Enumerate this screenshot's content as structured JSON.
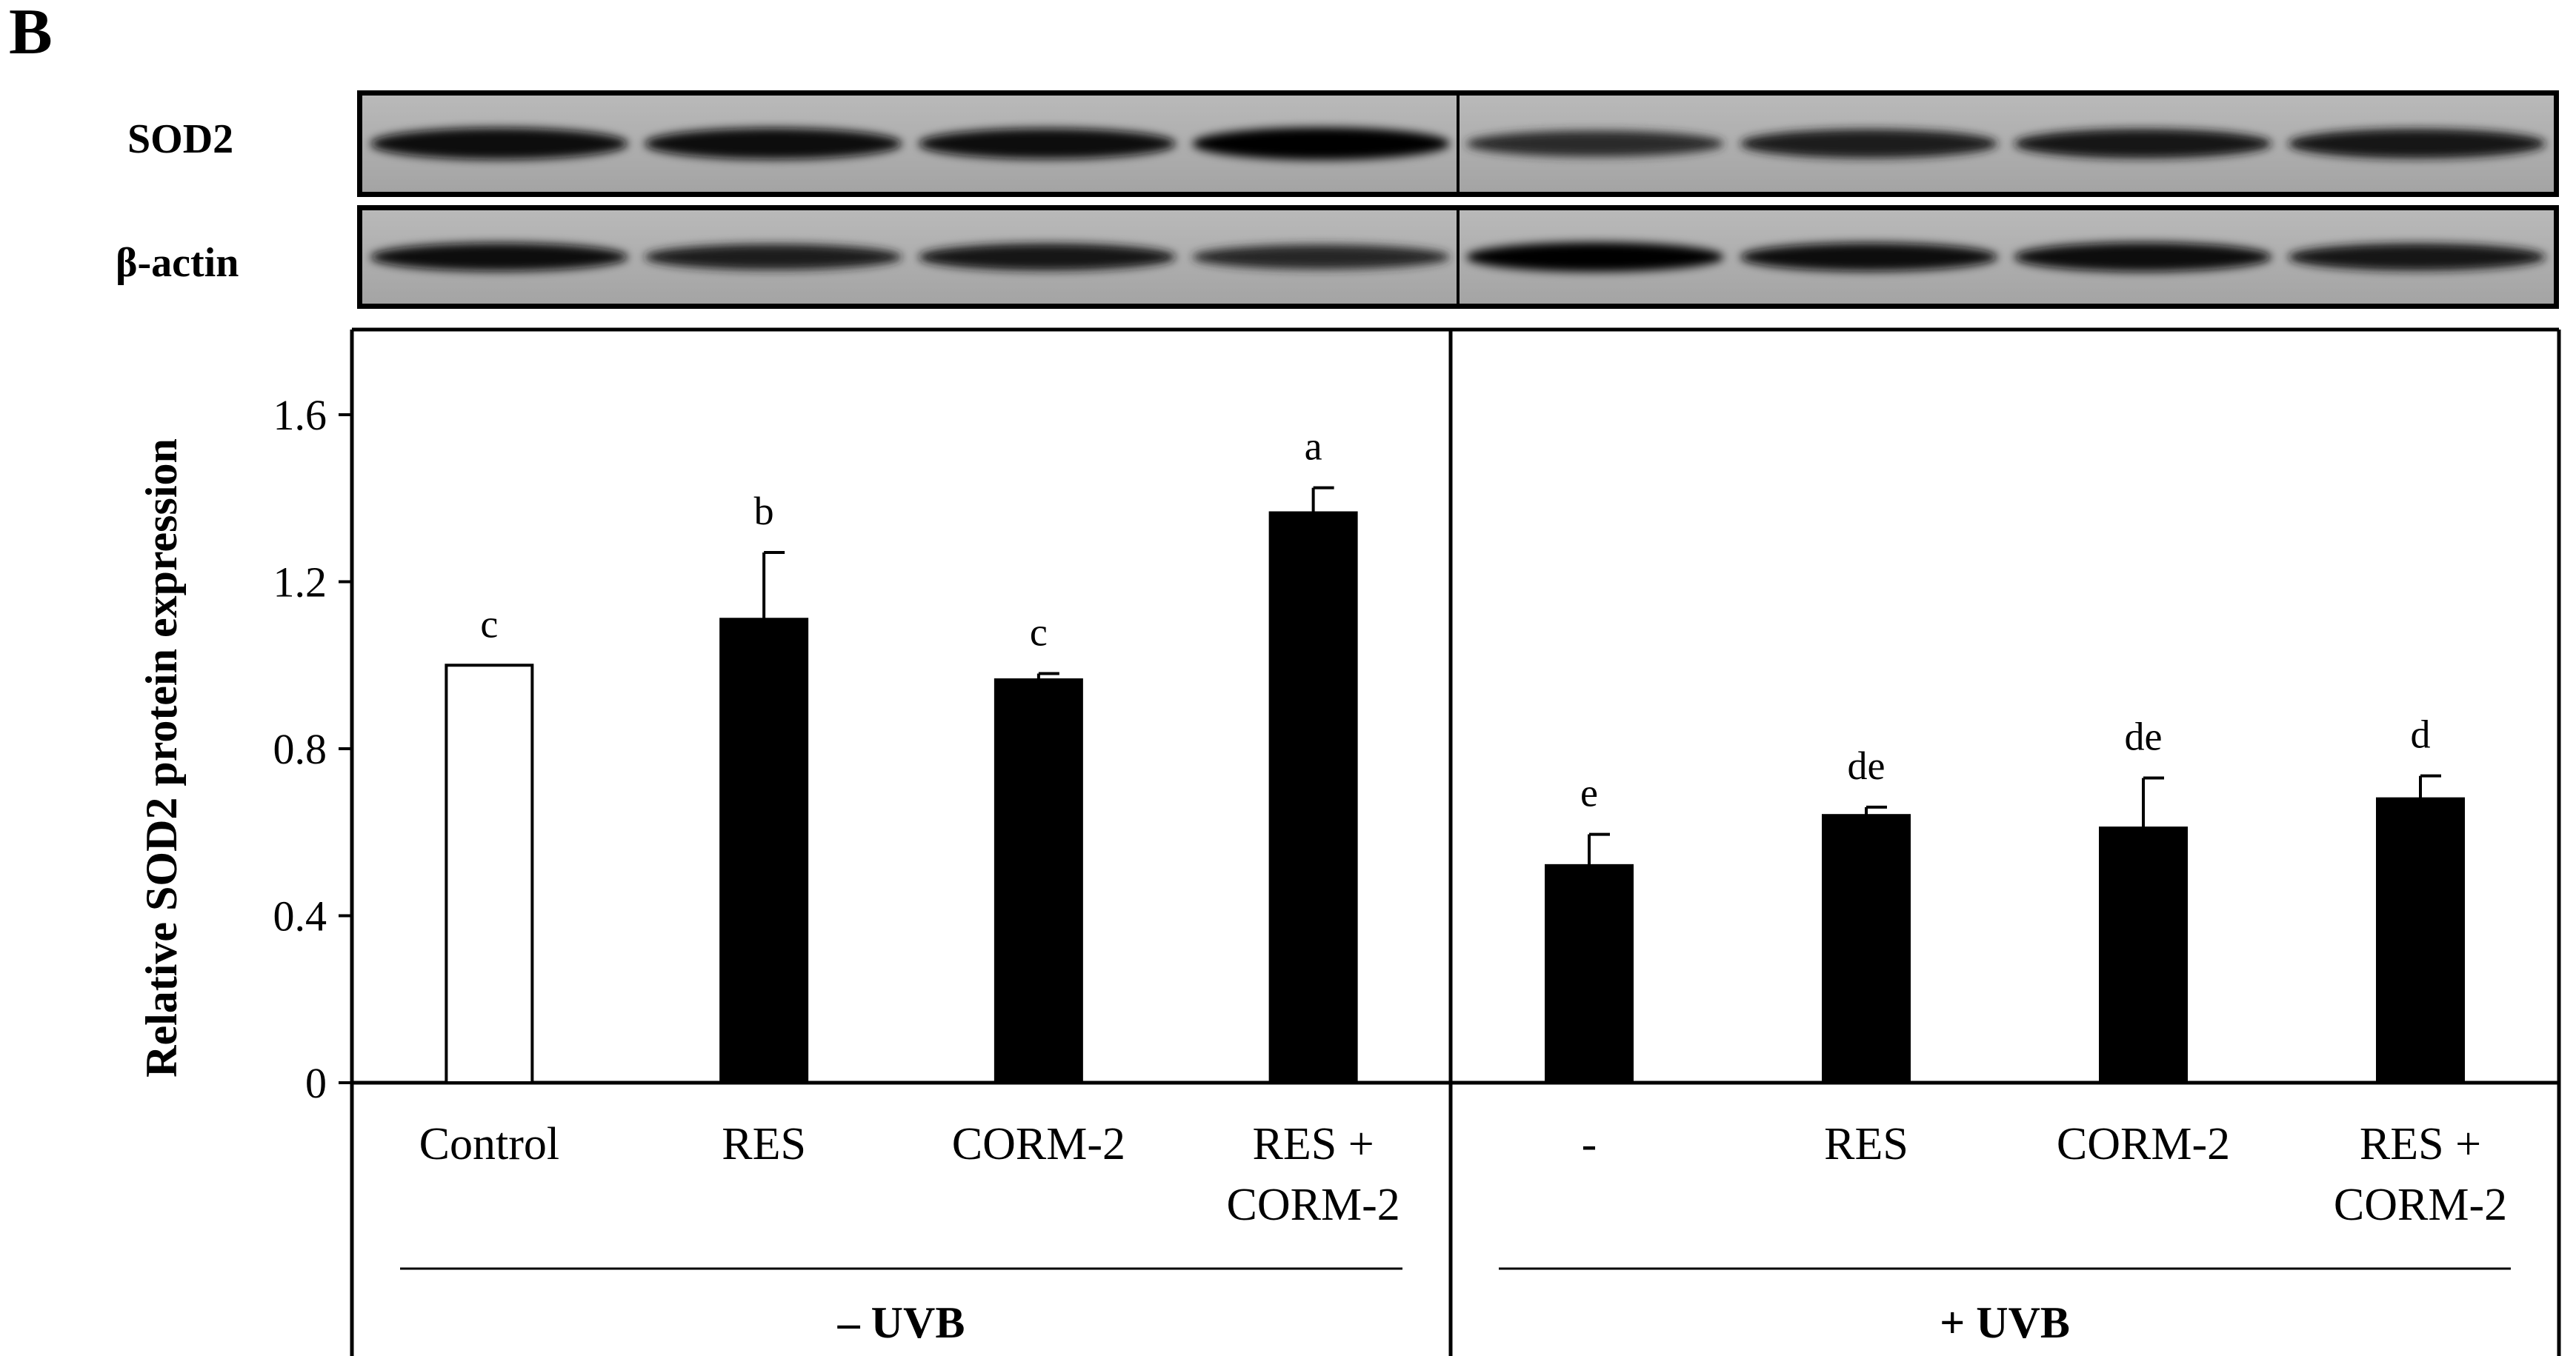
{
  "figure": {
    "panel_letter": "B",
    "blots": [
      {
        "label": "SOD2",
        "lane_intensity": [
          0.95,
          0.92,
          0.88,
          1.0,
          0.55,
          0.75,
          0.78,
          0.8
        ]
      },
      {
        "label": "β-actin",
        "lane_intensity": [
          0.9,
          0.7,
          0.8,
          0.62,
          1.0,
          0.92,
          0.98,
          0.82
        ]
      }
    ]
  },
  "chart_data": {
    "type": "bar",
    "ylabel": "Relative SOD2 protein expression",
    "ylim": [
      0,
      1.8
    ],
    "yticks": [
      {
        "value": 0,
        "label": "0"
      },
      {
        "value": 0.4,
        "label": "0.4"
      },
      {
        "value": 0.8,
        "label": "0.8"
      },
      {
        "value": 1.2,
        "label": "1.2"
      },
      {
        "value": 1.6,
        "label": "1.6"
      }
    ],
    "groups": [
      {
        "label": "– UVB",
        "bars": [
          {
            "category": [
              "Control"
            ],
            "value": 1.0,
            "error": 0,
            "letter": "c",
            "fill": "#ffffff"
          },
          {
            "category": [
              "RES"
            ],
            "value": 1.11,
            "error": 0.16,
            "letter": "b",
            "fill": "#000000"
          },
          {
            "category": [
              "CORM-2"
            ],
            "value": 0.965,
            "error": 0.015,
            "letter": "c",
            "fill": "#000000"
          },
          {
            "category": [
              "RES +",
              "CORM-2"
            ],
            "value": 1.365,
            "error": 0.06,
            "letter": "a",
            "fill": "#000000"
          }
        ]
      },
      {
        "label": "+ UVB",
        "bars": [
          {
            "category": [
              "-"
            ],
            "value": 0.52,
            "error": 0.075,
            "letter": "e",
            "fill": "#000000"
          },
          {
            "category": [
              "RES"
            ],
            "value": 0.64,
            "error": 0.02,
            "letter": "de",
            "fill": "#000000"
          },
          {
            "category": [
              "CORM-2"
            ],
            "value": 0.61,
            "error": 0.12,
            "letter": "de",
            "fill": "#000000"
          },
          {
            "category": [
              "RES +",
              "CORM-2"
            ],
            "value": 0.68,
            "error": 0.055,
            "letter": "d",
            "fill": "#000000"
          }
        ]
      }
    ]
  }
}
